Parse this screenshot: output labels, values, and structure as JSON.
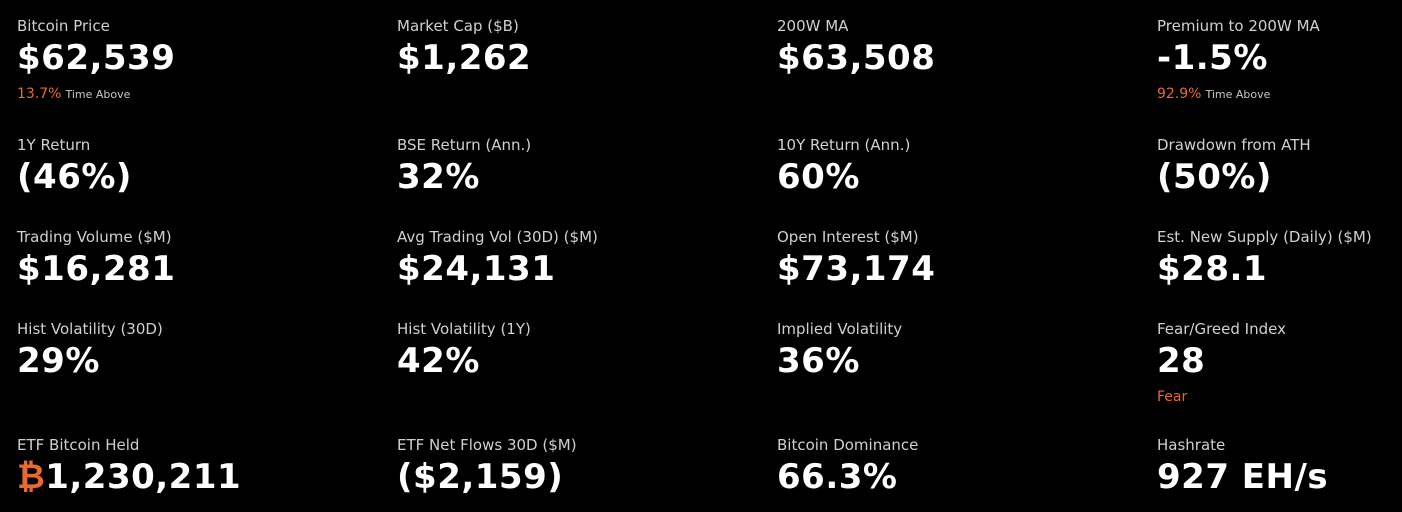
{
  "metrics": [
    {
      "label": "Bitcoin Price",
      "value": "$62,539",
      "sub": {
        "value": "13.7%",
        "text": "Time Above"
      }
    },
    {
      "label": "Market Cap ($B)",
      "value": "$1,262"
    },
    {
      "label": "200W MA",
      "value": "$63,508"
    },
    {
      "label": "Premium to 200W MA",
      "value": "-1.5%",
      "sub": {
        "value": "92.9%",
        "text": "Time Above"
      }
    },
    {
      "label": "1Y Return",
      "value": "(46%)"
    },
    {
      "label": "BSE Return (Ann.)",
      "value": "32%"
    },
    {
      "label": "10Y Return (Ann.)",
      "value": "60%"
    },
    {
      "label": "Drawdown from ATH",
      "value": "(50%)"
    },
    {
      "label": "Trading Volume ($M)",
      "value": "$16,281"
    },
    {
      "label": "Avg Trading Vol (30D) ($M)",
      "value": "$24,131"
    },
    {
      "label": "Open Interest ($M)",
      "value": "$73,174"
    },
    {
      "label": "Est. New Supply (Daily) ($M)",
      "value": "$28.1"
    },
    {
      "label": "Hist Volatility (30D)",
      "value": "29%"
    },
    {
      "label": "Hist Volatility (1Y)",
      "value": "42%"
    },
    {
      "label": "Implied Volatility",
      "value": "36%"
    },
    {
      "label": "Fear/Greed Index",
      "value": "28",
      "sub": {
        "value": "Fear"
      }
    },
    {
      "label": "ETF Bitcoin Held",
      "symbol": "₿",
      "value": "1,230,211"
    },
    {
      "label": "ETF Net Flows 30D ($M)",
      "value": "($2,159)"
    },
    {
      "label": "Bitcoin Dominance",
      "value": "66.3%"
    },
    {
      "label": "Hashrate",
      "value": "927 EH/s"
    }
  ]
}
